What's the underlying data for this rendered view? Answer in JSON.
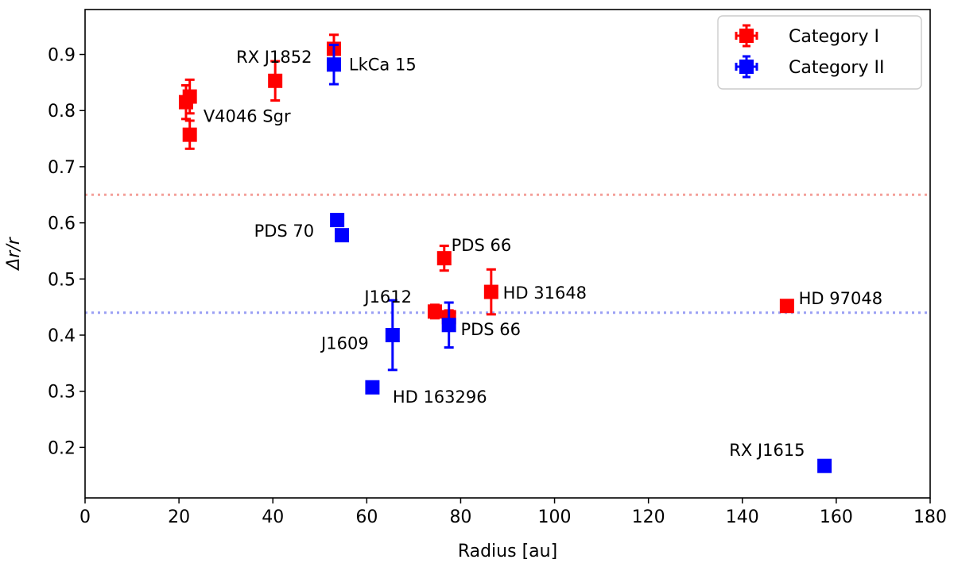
{
  "chart_data": {
    "type": "scatter",
    "xlabel": "Radius [au]",
    "ylabel": "Δr/r",
    "xlim": [
      0,
      180
    ],
    "ylim": [
      0.11,
      0.98
    ],
    "xticks": [
      0,
      20,
      40,
      60,
      80,
      100,
      120,
      140,
      160,
      180
    ],
    "yticks": [
      0.2,
      0.3,
      0.4,
      0.5,
      0.6,
      0.7,
      0.8,
      0.9
    ],
    "grid": false,
    "legend_position": "top-right",
    "reference_lines": [
      {
        "y": 0.65,
        "color": "#f4a09a",
        "style": "dotted"
      },
      {
        "y": 0.44,
        "color": "#9a9ff4",
        "style": "dotted"
      }
    ],
    "series": [
      {
        "name": "Category I",
        "color": "#ff0000",
        "points": [
          {
            "x": 21.5,
            "y": 0.815,
            "yerr": 0.03
          },
          {
            "x": 22.3,
            "y": 0.825,
            "yerr": 0.03
          },
          {
            "x": 22.3,
            "y": 0.757,
            "yerr": 0.025
          },
          {
            "x": 40.5,
            "y": 0.853,
            "yerr": 0.035
          },
          {
            "x": 53.0,
            "y": 0.91,
            "yerr": 0.025
          },
          {
            "x": 76.5,
            "y": 0.537,
            "yerr": 0.022
          },
          {
            "x": 74.5,
            "y": 0.442,
            "yerr": 0.012
          },
          {
            "x": 77.5,
            "y": 0.432,
            "yerr": 0.012
          },
          {
            "x": 86.5,
            "y": 0.477,
            "yerr": 0.04
          },
          {
            "x": 149.5,
            "y": 0.452,
            "yerr": 0.01
          }
        ]
      },
      {
        "name": "Category II",
        "color": "#0000ff",
        "points": [
          {
            "x": 53.0,
            "y": 0.882,
            "yerr": 0.035
          },
          {
            "x": 53.7,
            "y": 0.605,
            "yerr": 0.01
          },
          {
            "x": 54.7,
            "y": 0.578,
            "yerr": 0.01
          },
          {
            "x": 65.5,
            "y": 0.4,
            "yerr": 0.062
          },
          {
            "x": 77.5,
            "y": 0.418,
            "yerr": 0.04
          },
          {
            "x": 61.2,
            "y": 0.307,
            "yerr": 0.008
          },
          {
            "x": 157.5,
            "y": 0.167,
            "yerr": 0.01
          }
        ]
      }
    ],
    "annotations": [
      {
        "text": "RX J1852",
        "x": 32.2,
        "y": 0.895
      },
      {
        "text": "LkCa 15",
        "x": 56.2,
        "y": 0.882
      },
      {
        "text": "V4046 Sgr",
        "x": 25.2,
        "y": 0.79
      },
      {
        "text": "PDS 70",
        "x": 36.0,
        "y": 0.585
      },
      {
        "text": "PDS 66",
        "x": 78.0,
        "y": 0.56
      },
      {
        "text": "HD 31648",
        "x": 89.0,
        "y": 0.475
      },
      {
        "text": "J1612",
        "x": 59.5,
        "y": 0.468
      },
      {
        "text": "PDS 66",
        "x": 80.0,
        "y": 0.41
      },
      {
        "text": "HD 97048",
        "x": 152.0,
        "y": 0.465
      },
      {
        "text": "J1609",
        "x": 50.3,
        "y": 0.385
      },
      {
        "text": "HD 163296",
        "x": 65.5,
        "y": 0.29
      },
      {
        "text": "RX J1615",
        "x": 137.2,
        "y": 0.195
      }
    ]
  }
}
